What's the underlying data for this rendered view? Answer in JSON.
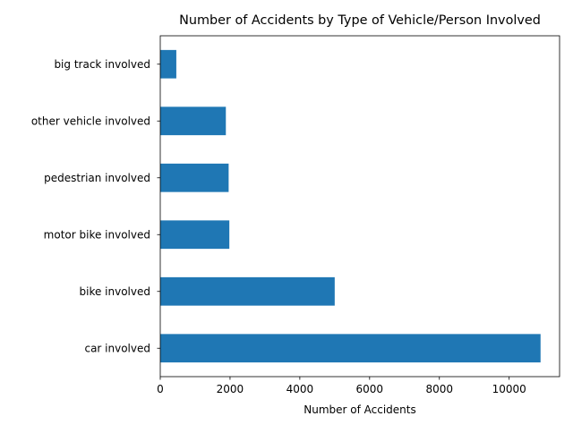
{
  "chart_data": {
    "type": "bar",
    "orientation": "horizontal",
    "title": "Number of Accidents by Type of Vehicle/Person Involved",
    "xlabel": "Number of Accidents",
    "ylabel": "",
    "categories": [
      "car involved",
      "bike involved",
      "motor bike involved",
      "pedestrian involved",
      "other vehicle involved",
      "big track involved"
    ],
    "values": [
      10900,
      5000,
      1980,
      1960,
      1880,
      460
    ],
    "xlim": [
      0,
      11445
    ],
    "xticks": [
      0,
      2000,
      4000,
      6000,
      8000,
      10000
    ],
    "xtick_labels": [
      "0",
      "2000",
      "4000",
      "6000",
      "8000",
      "10000"
    ],
    "grid": false,
    "legend": false,
    "bar_color": "#1f77b4"
  }
}
